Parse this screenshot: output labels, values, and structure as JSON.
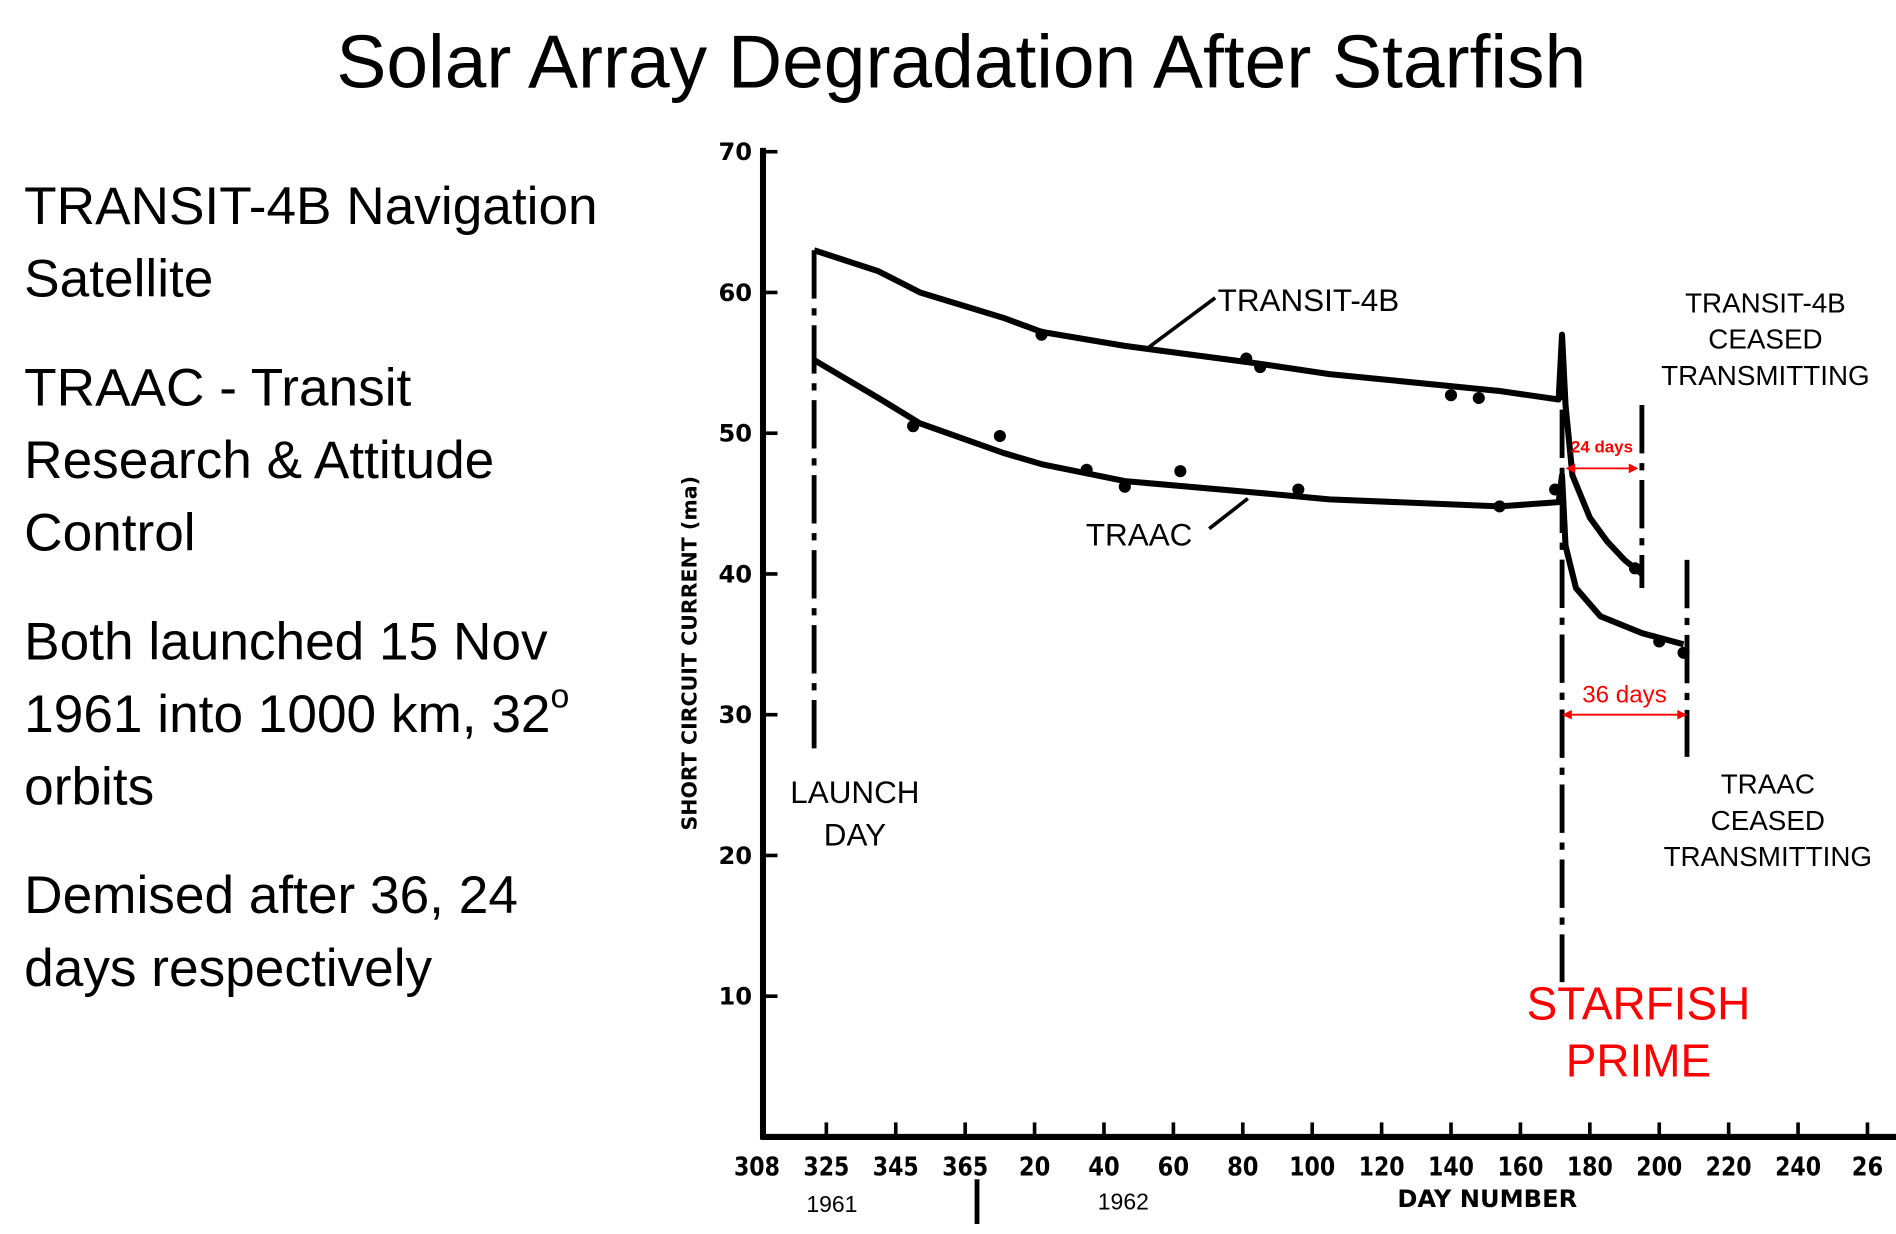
{
  "title": "Solar Array Degradation After Starfish",
  "bullets": [
    {
      "lines": [
        "TRANSIT-4B  Navigation",
        "Satellite"
      ]
    },
    {
      "lines": [
        "TRAAC - Transit",
        "Research & Attitude",
        "Control"
      ]
    },
    {
      "lines": [
        "Both launched 15 Nov",
        "1961 into 1000 km, 32",
        "orbits"
      ],
      "superscript": "o"
    },
    {
      "lines": [
        "Demised after 36, 24",
        "days respectively"
      ]
    }
  ],
  "colors": {
    "ink": "#000000",
    "annotation": "#ff0000"
  },
  "chart_data": {
    "type": "line",
    "ylabel": "SHORT CIRCUIT CURRENT (ma)",
    "xlabel": "DAY NUMBER",
    "ylim": [
      0,
      70
    ],
    "yticks": [
      10,
      20,
      30,
      40,
      50,
      60,
      70
    ],
    "ytick_labels": [
      "10",
      "20",
      "30",
      "40",
      "50",
      "60",
      "70"
    ],
    "xtick_labels": [
      "308",
      "325",
      "345",
      "365",
      "20",
      "40",
      "60",
      "80",
      "100",
      "120",
      "140",
      "160",
      "180",
      "200",
      "220",
      "240",
      "26"
    ],
    "year_labels": [
      "1961",
      "1962"
    ],
    "grid": false,
    "series": [
      {
        "name": "TRANSIT-4B",
        "x": [
          322,
          340,
          352,
          11,
          22,
          46,
          83,
          105,
          154,
          171,
          172,
          173,
          175,
          180,
          185,
          190,
          195
        ],
        "y": [
          63,
          61.5,
          60,
          58.2,
          57.2,
          56.2,
          55.0,
          54.2,
          53.0,
          52.4,
          57,
          52,
          47,
          44,
          42.3,
          41,
          40
        ],
        "points_x": [
          22,
          81,
          85,
          140,
          148,
          193
        ],
        "points_y": [
          57.0,
          55.3,
          54.7,
          52.7,
          52.5,
          40.4
        ]
      },
      {
        "name": "TRAAC",
        "x": [
          322,
          340,
          352,
          11,
          22,
          46,
          83,
          105,
          154,
          171,
          172,
          173,
          176,
          183,
          195,
          207
        ],
        "y": [
          55.2,
          52.5,
          50.7,
          48.6,
          47.8,
          46.6,
          45.8,
          45.3,
          44.8,
          45.1,
          47,
          42,
          39,
          37,
          35.8,
          35
        ],
        "points_x": [
          350,
          10,
          35,
          46,
          62,
          96,
          154,
          170,
          200,
          207
        ],
        "points_y": [
          50.5,
          49.8,
          47.4,
          46.2,
          47.3,
          46.0,
          44.8,
          46.0,
          35.2,
          34.4
        ]
      }
    ],
    "events": [
      {
        "id": "launch",
        "x": 322,
        "y_range": [
          27,
          63
        ],
        "label_lines": [
          "LAUNCH",
          "DAY"
        ]
      },
      {
        "id": "starfish",
        "x": 172,
        "y_range": [
          11,
          57
        ],
        "label_lines": [
          "STARFISH",
          "PRIME"
        ],
        "color": "#ff0000"
      },
      {
        "id": "transit-ceased",
        "x": 195,
        "y_range": [
          39,
          52
        ],
        "label_lines": [
          "TRANSIT-4B",
          "CEASED",
          "TRANSMITTING"
        ]
      },
      {
        "id": "traac-ceased",
        "x": 208,
        "y_range": [
          27,
          41
        ],
        "label_lines": [
          "TRAAC",
          "CEASED",
          "TRANSMITTING"
        ]
      }
    ],
    "spans": [
      {
        "label": "24 days",
        "from": 173,
        "to": 194,
        "y": 47.5,
        "color": "#ff0000"
      },
      {
        "label": "36 days",
        "from": 172,
        "to": 208,
        "y": 30,
        "color": "#ff0000"
      }
    ]
  }
}
